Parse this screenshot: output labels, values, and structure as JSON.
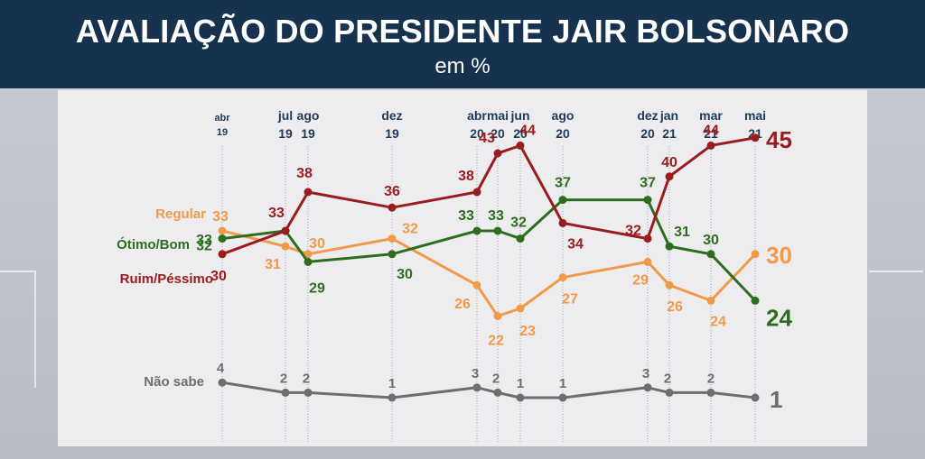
{
  "header": {
    "title": "AVALIAÇÃO DO PRESIDENTE JAIR BOLSONARO",
    "subtitle": "em %"
  },
  "chart_data": {
    "type": "line",
    "title": "AVALIAÇÃO DO PRESIDENTE JAIR BOLSONARO",
    "subtitle": "em %",
    "categories": [
      [
        "abr",
        "19"
      ],
      [
        "jul",
        "19"
      ],
      [
        "ago",
        "19"
      ],
      [
        "dez",
        "19"
      ],
      [
        "abr",
        "20"
      ],
      [
        "mai",
        "20"
      ],
      [
        "jun",
        "20"
      ],
      [
        "ago",
        "20"
      ],
      [
        "dez",
        "20"
      ],
      [
        "jan",
        "21"
      ],
      [
        "mar",
        "21"
      ],
      [
        "mai",
        "21"
      ]
    ],
    "series": [
      {
        "key": "ruim",
        "name": "Ruim/Péssimo",
        "color": "#9b1c1f",
        "values": [
          30,
          33,
          38,
          36,
          38,
          43,
          44,
          34,
          32,
          40,
          44,
          45
        ]
      },
      {
        "key": "regular",
        "name": "Regular",
        "color": "#f39a4a",
        "values": [
          33,
          31,
          30,
          32,
          26,
          22,
          23,
          27,
          29,
          26,
          24,
          30
        ]
      },
      {
        "key": "otimo",
        "name": "Ótimo/Bom",
        "color": "#2d6e1e",
        "values": [
          32,
          33,
          29,
          30,
          33,
          33,
          32,
          37,
          37,
          31,
          30,
          24
        ]
      },
      {
        "key": "naosabe",
        "name": "Não sabe",
        "color": "#6e6e70",
        "values": [
          4,
          2,
          2,
          1,
          3,
          2,
          1,
          1,
          3,
          2,
          2,
          1
        ]
      }
    ],
    "xlabel": "",
    "ylabel": "",
    "ylim": [
      0,
      50
    ]
  }
}
